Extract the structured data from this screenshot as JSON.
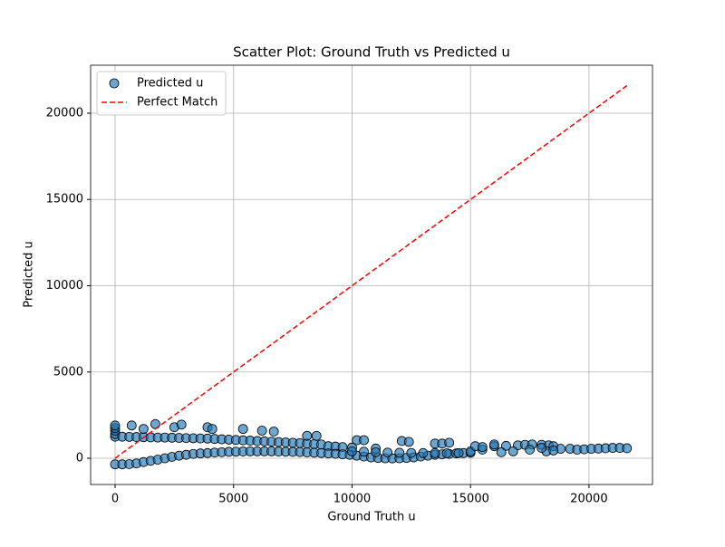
{
  "chart_data": {
    "type": "scatter",
    "title": "Scatter Plot: Ground Truth vs Predicted u",
    "xlabel": "Ground Truth u",
    "ylabel": "Predicted u",
    "xlim": [
      -1033,
      22680
    ],
    "ylim": [
      -1522,
      22782
    ],
    "xticks": [
      0,
      5000,
      10000,
      15000,
      20000
    ],
    "yticks": [
      0,
      5000,
      10000,
      15000,
      20000
    ],
    "grid": true,
    "legend": "upper left",
    "series": [
      {
        "name": "Predicted u",
        "type": "scatter",
        "color": "#1f77b4",
        "x": [
          0,
          0,
          0,
          0,
          0,
          300,
          600,
          700,
          900,
          1200,
          1200,
          1500,
          1700,
          1800,
          2100,
          2400,
          2500,
          2800,
          2700,
          3000,
          3300,
          3600,
          3900,
          3900,
          4100,
          4200,
          4500,
          4800,
          5100,
          5400,
          5400,
          5700,
          6000,
          6200,
          6300,
          6600,
          6700,
          6900,
          7200,
          7500,
          7800,
          8100,
          8100,
          8400,
          8500,
          8700,
          9000,
          9300,
          9600,
          10000,
          10200,
          10500,
          11000,
          12100,
          12400,
          13500,
          13800,
          14100,
          0,
          300,
          600,
          900,
          1200,
          1500,
          1800,
          2100,
          2400,
          2700,
          3000,
          3300,
          3600,
          3900,
          4200,
          4500,
          4800,
          5100,
          5400,
          5700,
          6000,
          6300,
          6600,
          6900,
          7200,
          7500,
          7800,
          8100,
          8400,
          8700,
          9000,
          9300,
          9600,
          9900,
          10200,
          10500,
          10800,
          11100,
          11400,
          11700,
          12000,
          12300,
          12600,
          12900,
          13200,
          13500,
          13800,
          14100,
          14400,
          14700,
          15000,
          10000,
          10500,
          11000,
          11500,
          12000,
          12500,
          13000,
          13500,
          14000,
          14500,
          15000,
          15200,
          15500,
          15500,
          16000,
          16000,
          16500,
          17000,
          17300,
          17600,
          18000,
          18300,
          18500,
          18200,
          17500,
          16800,
          16300,
          18800,
          19200,
          19500,
          19800,
          20100,
          20400,
          20700,
          21000,
          21300,
          21600,
          18500,
          18000
        ],
        "values": [
          1250,
          1400,
          1600,
          1750,
          1900,
          1250,
          1240,
          1900,
          1230,
          1220,
          1700,
          1210,
          1980,
          1200,
          1200,
          1190,
          1800,
          1950,
          1180,
          1170,
          1160,
          1150,
          1140,
          1800,
          1700,
          1120,
          1100,
          1080,
          1060,
          1040,
          1700,
          1020,
          1000,
          1600,
          980,
          960,
          1550,
          940,
          920,
          900,
          880,
          850,
          1300,
          820,
          1300,
          800,
          700,
          680,
          650,
          620,
          1050,
          1050,
          560,
          1000,
          950,
          850,
          850,
          900,
          -350,
          -350,
          -340,
          -300,
          -220,
          -150,
          -80,
          0,
          80,
          150,
          200,
          250,
          280,
          300,
          330,
          350,
          370,
          380,
          390,
          400,
          400,
          400,
          400,
          390,
          380,
          370,
          360,
          340,
          320,
          300,
          280,
          260,
          230,
          200,
          150,
          100,
          50,
          20,
          0,
          -10,
          0,
          20,
          50,
          100,
          150,
          200,
          230,
          250,
          280,
          300,
          320,
          400,
          380,
          350,
          330,
          320,
          310,
          300,
          300,
          290,
          300,
          400,
          700,
          500,
          650,
          700,
          800,
          720,
          750,
          780,
          800,
          780,
          750,
          700,
          400,
          500,
          400,
          350,
          550,
          550,
          500,
          520,
          550,
          560,
          580,
          600,
          600,
          580,
          450,
          600
        ]
      },
      {
        "name": "Perfect Match",
        "type": "line",
        "color": "#ff0000",
        "dashed": true,
        "x": [
          0,
          21600
        ],
        "values": [
          0,
          21600
        ]
      }
    ]
  }
}
